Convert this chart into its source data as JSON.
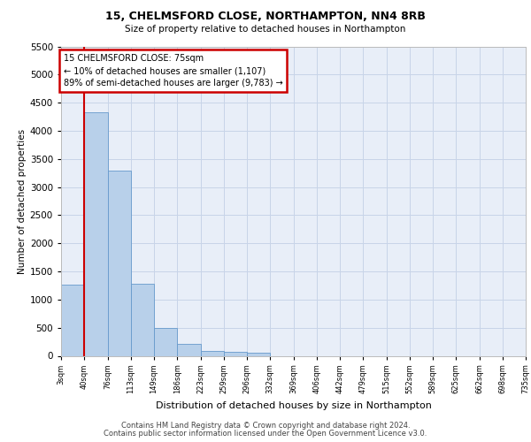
{
  "title1": "15, CHELMSFORD CLOSE, NORTHAMPTON, NN4 8RB",
  "title2": "Size of property relative to detached houses in Northampton",
  "xlabel": "Distribution of detached houses by size in Northampton",
  "ylabel": "Number of detached properties",
  "footer1": "Contains HM Land Registry data © Crown copyright and database right 2024.",
  "footer2": "Contains public sector information licensed under the Open Government Licence v3.0.",
  "annotation_title": "15 CHELMSFORD CLOSE: 75sqm",
  "annotation_line1": "← 10% of detached houses are smaller (1,107)",
  "annotation_line2": "89% of semi-detached houses are larger (9,783) →",
  "bar_values": [
    1270,
    4330,
    3300,
    1280,
    490,
    210,
    90,
    75,
    60,
    0,
    0,
    0,
    0,
    0,
    0,
    0,
    0,
    0,
    0
  ],
  "bin_labels": [
    "3sqm",
    "40sqm",
    "76sqm",
    "113sqm",
    "149sqm",
    "186sqm",
    "223sqm",
    "259sqm",
    "296sqm",
    "332sqm",
    "369sqm",
    "406sqm",
    "442sqm",
    "479sqm",
    "515sqm",
    "552sqm",
    "589sqm",
    "625sqm",
    "662sqm",
    "698sqm",
    "735sqm"
  ],
  "bar_color": "#b8d0ea",
  "bar_edge_color": "#6699cc",
  "grid_color": "#c8d4e8",
  "vline_color": "#cc0000",
  "annotation_box_color": "#cc0000",
  "ylim": [
    0,
    5500
  ],
  "yticks": [
    0,
    500,
    1000,
    1500,
    2000,
    2500,
    3000,
    3500,
    4000,
    4500,
    5000,
    5500
  ],
  "plot_bg_color": "#e8eef8",
  "fig_bg_color": "#ffffff"
}
